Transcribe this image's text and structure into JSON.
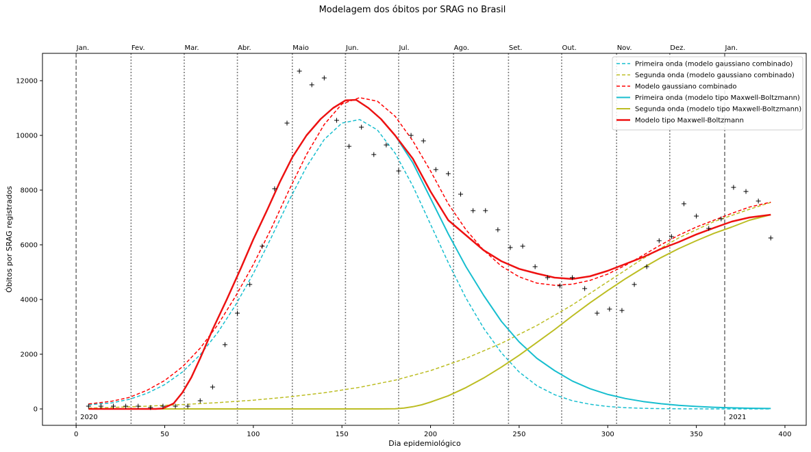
{
  "chart_data": {
    "type": "line",
    "title": "Modelagem dos óbitos por SRAG no Brasil",
    "xlabel": "Dia epidemiológico",
    "ylabel": "Óbitos por SRAG registrados",
    "xlim": [
      -19,
      412
    ],
    "ylim": [
      -600,
      13000
    ],
    "xticks": [
      0,
      50,
      100,
      150,
      200,
      250,
      300,
      350,
      400
    ],
    "yticks": [
      0,
      2000,
      4000,
      6000,
      8000,
      10000,
      12000
    ],
    "grid": false,
    "legend_position": "top-right",
    "month_markers": [
      {
        "x": 0,
        "label": "Jan.",
        "style": "dashed"
      },
      {
        "x": 31,
        "label": "Fev.",
        "style": "dotted"
      },
      {
        "x": 61,
        "label": "Mar.",
        "style": "dotted"
      },
      {
        "x": 91,
        "label": "Abr.",
        "style": "dotted"
      },
      {
        "x": 122,
        "label": "Maio",
        "style": "dotted"
      },
      {
        "x": 152,
        "label": "Jun.",
        "style": "dotted"
      },
      {
        "x": 182,
        "label": "Jul.",
        "style": "dotted"
      },
      {
        "x": 213,
        "label": "Ago.",
        "style": "dotted"
      },
      {
        "x": 244,
        "label": "Set.",
        "style": "dotted"
      },
      {
        "x": 274,
        "label": "Out.",
        "style": "dotted"
      },
      {
        "x": 305,
        "label": "Nov.",
        "style": "dotted"
      },
      {
        "x": 335,
        "label": "Dez.",
        "style": "dotted"
      },
      {
        "x": 366,
        "label": "Jan.",
        "style": "dashed"
      }
    ],
    "year_labels": [
      {
        "x": 0,
        "label": "2020"
      },
      {
        "x": 366,
        "label": "2021"
      }
    ],
    "series": [
      {
        "name": "Primeira onda (modelo gaussiano combinado)",
        "color": "#17becf",
        "dash": "dashed",
        "width": 1.5,
        "x": [
          7,
          20,
          30,
          40,
          50,
          60,
          70,
          80,
          90,
          100,
          110,
          120,
          130,
          140,
          150,
          160,
          170,
          180,
          190,
          200,
          210,
          220,
          230,
          240,
          250,
          260,
          270,
          280,
          290,
          300,
          310,
          320,
          330,
          340,
          350,
          360,
          370,
          380,
          392
        ],
        "y": [
          150,
          220,
          350,
          570,
          890,
          1350,
          1980,
          2800,
          3800,
          4950,
          6250,
          7600,
          8850,
          9850,
          10450,
          10580,
          10200,
          9350,
          8150,
          6750,
          5350,
          4050,
          2950,
          2050,
          1350,
          850,
          520,
          300,
          170,
          90,
          45,
          22,
          10,
          5,
          2,
          1,
          0,
          0,
          0
        ]
      },
      {
        "name": "Segunda onda (modelo gaussiano combinado)",
        "color": "#bcbd22",
        "dash": "dashed",
        "width": 1.5,
        "x": [
          7,
          20,
          40,
          60,
          80,
          100,
          120,
          140,
          160,
          180,
          200,
          220,
          240,
          260,
          280,
          300,
          320,
          340,
          360,
          380,
          392
        ],
        "y": [
          30,
          55,
          100,
          160,
          230,
          320,
          440,
          590,
          790,
          1050,
          1400,
          1850,
          2400,
          3050,
          3800,
          4650,
          5500,
          6250,
          6850,
          7300,
          7550
        ]
      },
      {
        "name": "Modelo gaussiano combinado",
        "color": "#ff0000",
        "dash": "dashed",
        "width": 1.5,
        "x": [
          7,
          20,
          30,
          40,
          50,
          60,
          70,
          80,
          90,
          100,
          110,
          120,
          130,
          140,
          150,
          160,
          170,
          180,
          190,
          200,
          210,
          220,
          230,
          240,
          250,
          260,
          270,
          280,
          290,
          300,
          310,
          320,
          330,
          340,
          350,
          360,
          370,
          380,
          392
        ],
        "y": [
          180,
          280,
          420,
          680,
          1040,
          1540,
          2220,
          3080,
          4120,
          5280,
          6580,
          7980,
          9300,
          10400,
          11150,
          11380,
          11250,
          10700,
          9800,
          8700,
          7500,
          6550,
          5800,
          5220,
          4830,
          4600,
          4520,
          4560,
          4700,
          4930,
          5250,
          5620,
          6000,
          6350,
          6650,
          6900,
          7150,
          7380,
          7560
        ]
      },
      {
        "name": "Primeira onda (modelo tipo Maxwell-Boltzmann)",
        "color": "#17becf",
        "dash": "solid",
        "width": 2,
        "x": [
          7,
          45,
          49,
          55,
          60,
          65,
          70,
          77,
          85,
          93,
          100,
          108,
          115,
          122,
          130,
          138,
          145,
          152,
          158,
          165,
          172,
          180,
          190,
          200,
          210,
          220,
          230,
          240,
          250,
          260,
          270,
          280,
          290,
          300,
          310,
          320,
          330,
          340,
          350,
          360,
          370,
          380,
          392
        ],
        "y": [
          0,
          0,
          20,
          200,
          600,
          1150,
          1850,
          2900,
          4000,
          5150,
          6200,
          7300,
          8300,
          9200,
          10000,
          10600,
          11000,
          11280,
          11300,
          11000,
          10600,
          10000,
          9000,
          7700,
          6400,
          5200,
          4150,
          3200,
          2450,
          1850,
          1400,
          1020,
          740,
          530,
          380,
          270,
          190,
          130,
          90,
          60,
          40,
          25,
          15
        ]
      },
      {
        "name": "Segunda onda (modelo tipo Maxwell-Boltzmann)",
        "color": "#bcbd22",
        "dash": "solid",
        "width": 2,
        "x": [
          7,
          100,
          170,
          180,
          185,
          190,
          195,
          200,
          210,
          220,
          230,
          240,
          250,
          260,
          270,
          280,
          290,
          300,
          310,
          320,
          330,
          340,
          350,
          360,
          370,
          380,
          392
        ],
        "y": [
          0,
          0,
          0,
          5,
          30,
          80,
          150,
          250,
          480,
          780,
          1130,
          1530,
          1960,
          2430,
          2900,
          3400,
          3880,
          4330,
          4760,
          5160,
          5530,
          5860,
          6150,
          6420,
          6650,
          6900,
          7100
        ]
      },
      {
        "name": "Modelo tipo Maxwell-Boltzmann",
        "color": "#ee1111",
        "dash": "solid",
        "width": 2.5,
        "x": [
          7,
          45,
          49,
          55,
          60,
          65,
          70,
          77,
          85,
          93,
          100,
          108,
          115,
          122,
          130,
          138,
          145,
          152,
          158,
          165,
          172,
          180,
          190,
          200,
          210,
          220,
          230,
          240,
          250,
          260,
          270,
          280,
          290,
          300,
          310,
          320,
          330,
          340,
          350,
          360,
          370,
          380,
          392
        ],
        "y": [
          0,
          0,
          20,
          200,
          600,
          1150,
          1850,
          2900,
          4000,
          5150,
          6200,
          7300,
          8300,
          9200,
          10000,
          10600,
          11000,
          11280,
          11300,
          11000,
          10600,
          10000,
          9150,
          7950,
          6900,
          6350,
          5800,
          5400,
          5120,
          4950,
          4800,
          4750,
          4850,
          5050,
          5300,
          5550,
          5850,
          6100,
          6380,
          6620,
          6850,
          7000,
          7100
        ]
      }
    ],
    "observed": {
      "marker": "+",
      "color": "#000000",
      "x": [
        7,
        14,
        21,
        28,
        35,
        42,
        49,
        56,
        63,
        70,
        77,
        84,
        91,
        98,
        105,
        112,
        119,
        126,
        133,
        140,
        147,
        154,
        161,
        168,
        175,
        182,
        189,
        196,
        203,
        210,
        217,
        224,
        231,
        238,
        245,
        252,
        259,
        266,
        273,
        280,
        287,
        294,
        301,
        308,
        315,
        322,
        329,
        336,
        343,
        350,
        357,
        364,
        371,
        378,
        385,
        392
      ],
      "y": [
        100,
        100,
        100,
        100,
        100,
        50,
        100,
        100,
        100,
        300,
        800,
        2350,
        3500,
        4550,
        5950,
        8050,
        10450,
        12350,
        11850,
        12100,
        10550,
        9600,
        10300,
        9300,
        9650,
        8700,
        10000,
        9800,
        8750,
        8600,
        7850,
        7250,
        7250,
        6550,
        5900,
        5950,
        5200,
        4800,
        4500,
        4800,
        4400,
        3500,
        3650,
        3600,
        4550,
        5200,
        6150,
        6300,
        7500,
        7050,
        6600,
        6950,
        8100,
        7950,
        7600,
        6250
      ]
    }
  }
}
